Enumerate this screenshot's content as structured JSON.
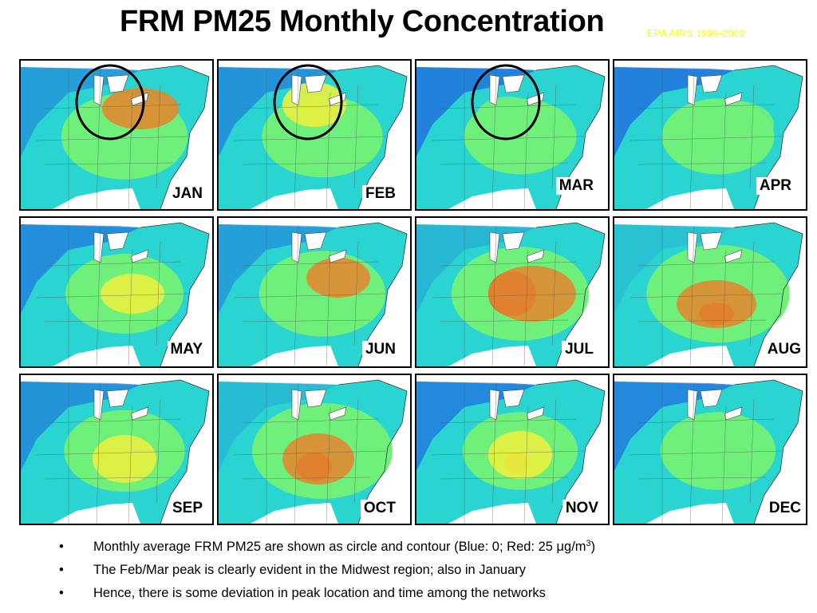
{
  "title": "FRM PM25 Monthly Concentration",
  "subtitle": "EPA AIRS 1999-2002",
  "colors": {
    "low_blue": "#1f5fe0",
    "cyan": "#2ad4d0",
    "green": "#6ef07a",
    "yellow": "#e8f040",
    "orange": "#e08a30",
    "red": "#e82020",
    "subtitle_yellow": "#ffff00"
  },
  "panels": [
    {
      "month": "JAN",
      "circled": true,
      "level": 0.55
    },
    {
      "month": "FEB",
      "circled": true,
      "level": 0.45
    },
    {
      "month": "MAR",
      "circled": true,
      "level": 0.3
    },
    {
      "month": "APR",
      "circled": false,
      "level": 0.3
    },
    {
      "month": "MAY",
      "circled": false,
      "level": 0.4
    },
    {
      "month": "JUN",
      "circled": false,
      "level": 0.55
    },
    {
      "month": "JUL",
      "circled": false,
      "level": 0.75
    },
    {
      "month": "AUG",
      "circled": false,
      "level": 0.85
    },
    {
      "month": "SEP",
      "circled": false,
      "level": 0.45
    },
    {
      "month": "OCT",
      "circled": false,
      "level": 0.8
    },
    {
      "month": "NOV",
      "circled": false,
      "level": 0.35
    },
    {
      "month": "DEC",
      "circled": false,
      "level": 0.35
    }
  ],
  "bullets": [
    {
      "text": "Monthly average FRM PM25 are shown as circle and contour (Blue: 0; Red: 25 ",
      "unit": "μg/m",
      "sup": "3",
      "close": ")"
    },
    {
      "text": "The Feb/Mar peak is clearly evident in the Midwest region; also in January"
    },
    {
      "text": "Hence, there is some deviation in peak location and time among the networks"
    }
  ]
}
